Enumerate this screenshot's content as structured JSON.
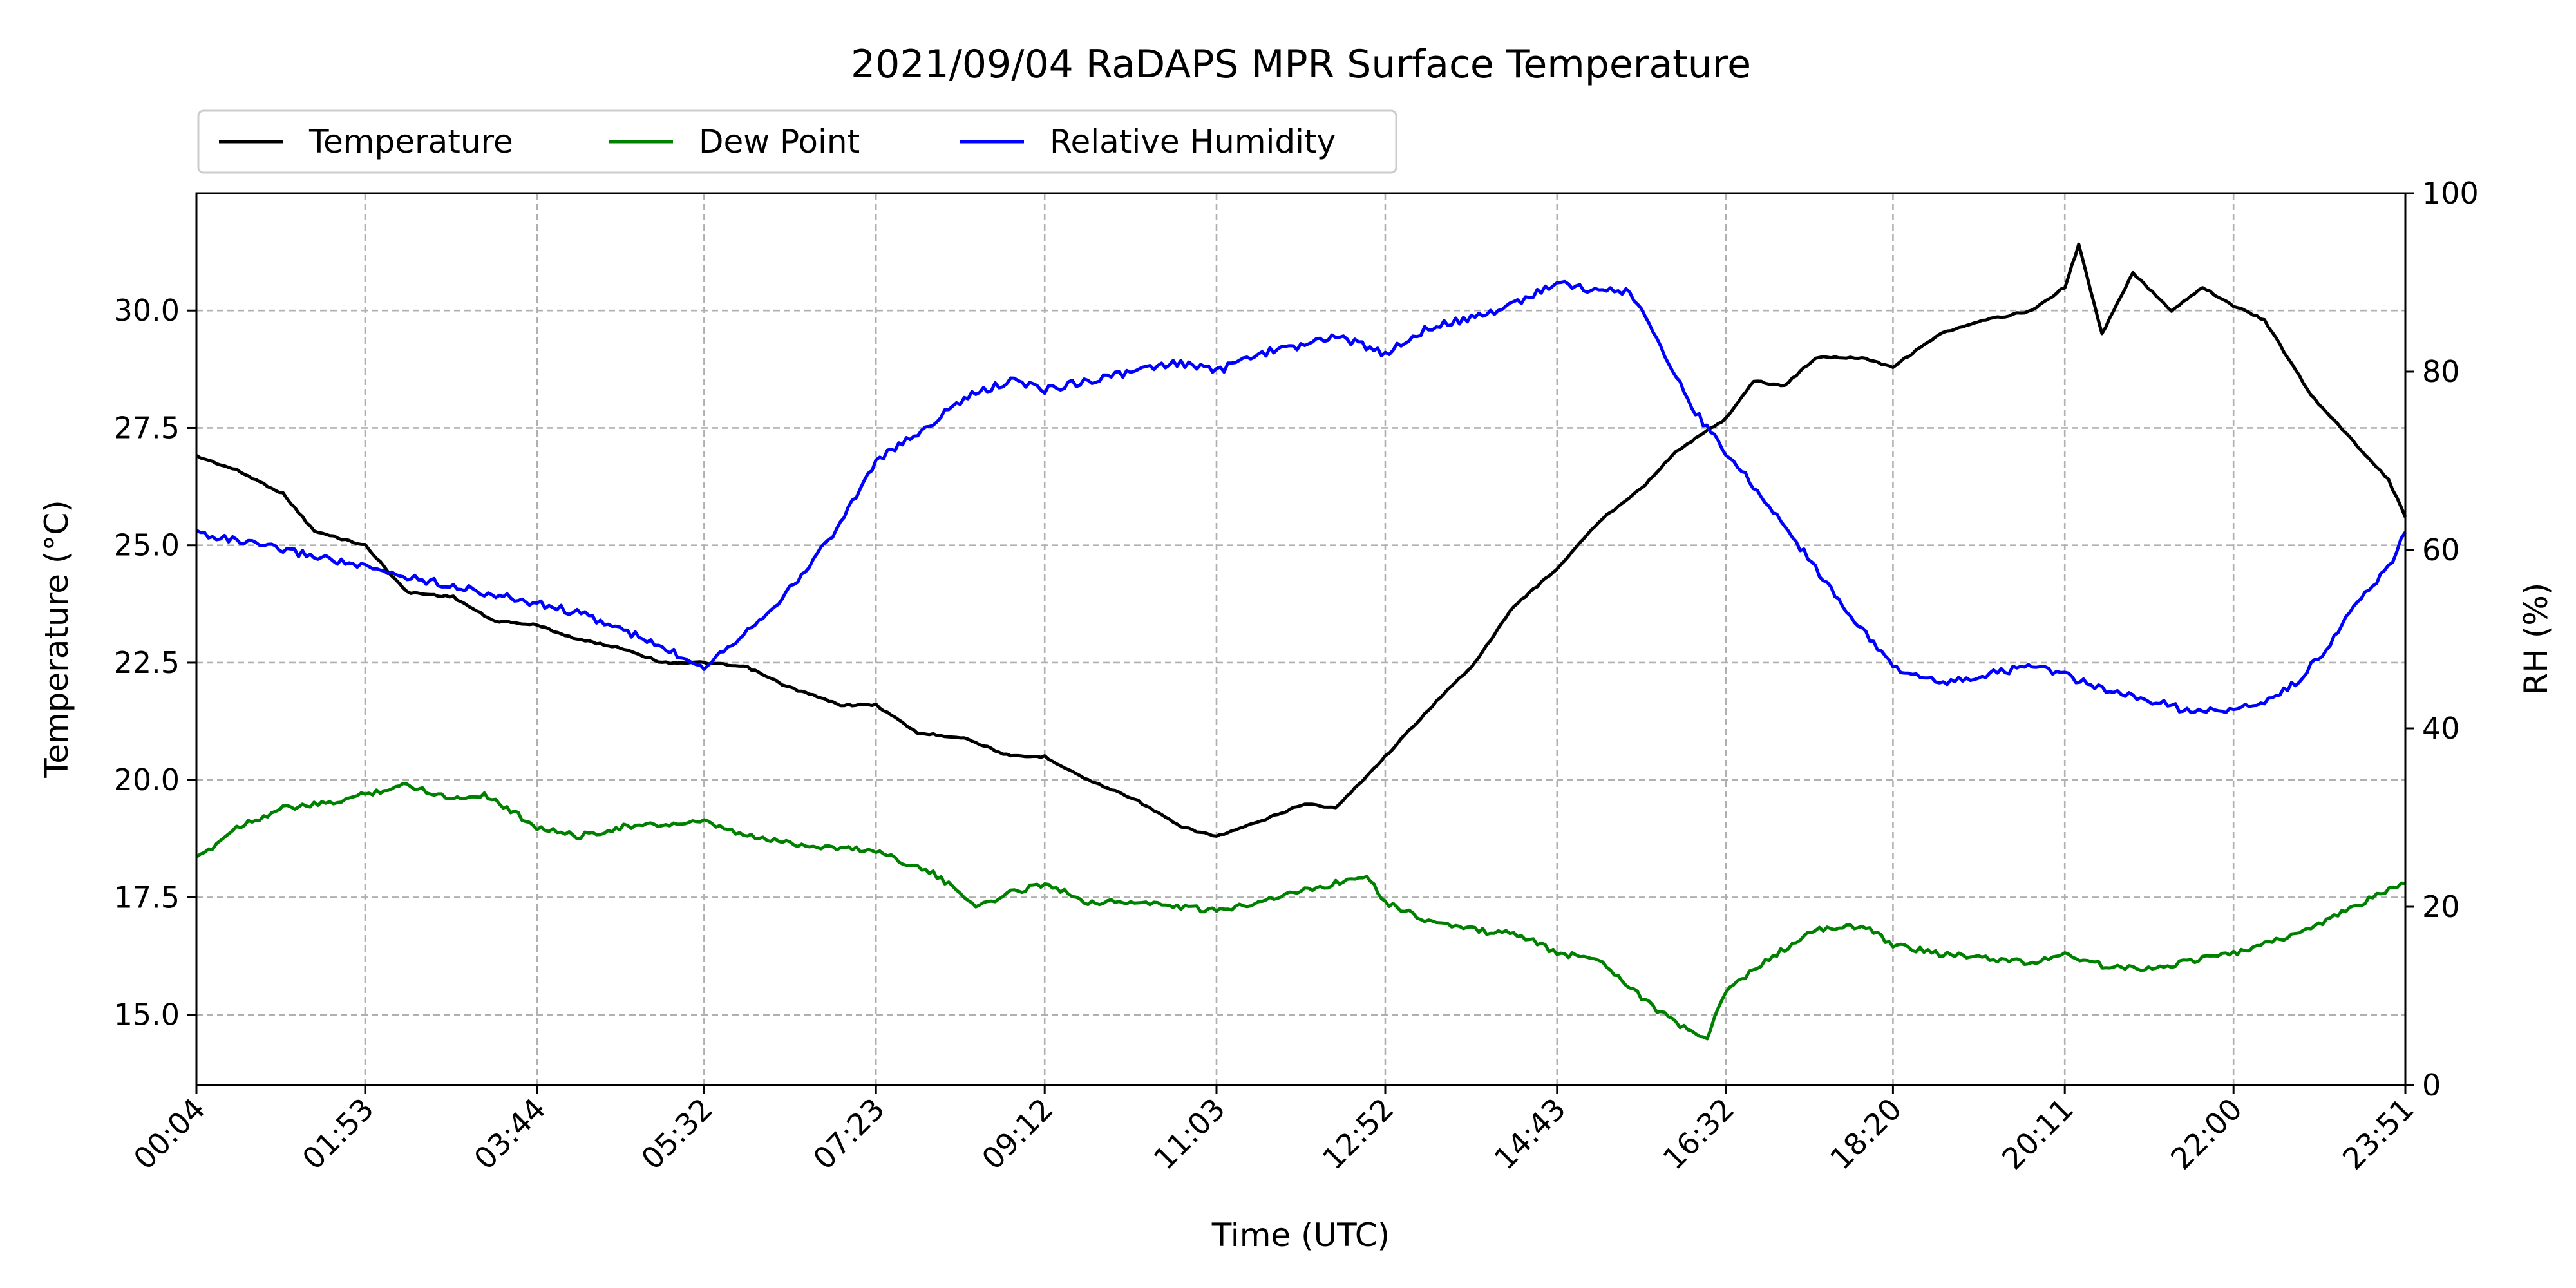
{
  "chart_data": {
    "type": "line",
    "title": "2021/09/04 RaDAPS MPR Surface Temperature",
    "xlabel": "Time (UTC)",
    "ylabel": "Temperature ($^\\circ$C)",
    "y2label": "RH (%)",
    "x_ticks": [
      "00:04",
      "01:53",
      "03:44",
      "05:32",
      "07:23",
      "09:12",
      "11:03",
      "12:52",
      "14:43",
      "16:32",
      "18:20",
      "20:11",
      "22:00",
      "23:51"
    ],
    "xlim": [
      "00:04",
      "23:51"
    ],
    "y_ticks": [
      "15.0",
      "17.5",
      "20.0",
      "22.5",
      "25.0",
      "27.5",
      "30.0"
    ],
    "ylim": [
      13.5,
      32.5
    ],
    "y2_ticks": [
      "0",
      "20",
      "40",
      "60",
      "80",
      "100"
    ],
    "y2lim": [
      0,
      100
    ],
    "grid": true,
    "legend_position": "above-left",
    "series": [
      {
        "name": "Temperature",
        "color": "#000000",
        "axis": "left",
        "points": [
          [
            "00:04",
            26.9
          ],
          [
            "00:30",
            26.6
          ],
          [
            "01:00",
            26.1
          ],
          [
            "01:20",
            25.3
          ],
          [
            "01:53",
            25.0
          ],
          [
            "02:20",
            24.0
          ],
          [
            "02:50",
            23.9
          ],
          [
            "03:15",
            23.4
          ],
          [
            "03:44",
            23.3
          ],
          [
            "04:10",
            23.0
          ],
          [
            "04:40",
            22.8
          ],
          [
            "05:05",
            22.5
          ],
          [
            "05:32",
            22.5
          ],
          [
            "06:00",
            22.4
          ],
          [
            "06:25",
            22.0
          ],
          [
            "07:00",
            21.6
          ],
          [
            "07:23",
            21.6
          ],
          [
            "07:50",
            21.0
          ],
          [
            "08:20",
            20.9
          ],
          [
            "08:50",
            20.5
          ],
          [
            "09:12",
            20.5
          ],
          [
            "09:40",
            20.0
          ],
          [
            "10:10",
            19.6
          ],
          [
            "10:40",
            19.0
          ],
          [
            "11:03",
            18.8
          ],
          [
            "11:30",
            19.1
          ],
          [
            "12:00",
            19.5
          ],
          [
            "12:20",
            19.4
          ],
          [
            "12:52",
            20.5
          ],
          [
            "13:20",
            21.5
          ],
          [
            "13:50",
            22.5
          ],
          [
            "14:15",
            23.7
          ],
          [
            "14:43",
            24.5
          ],
          [
            "15:10",
            25.5
          ],
          [
            "15:40",
            26.3
          ],
          [
            "16:00",
            27.0
          ],
          [
            "16:32",
            27.7
          ],
          [
            "16:50",
            28.5
          ],
          [
            "17:10",
            28.4
          ],
          [
            "17:30",
            29.0
          ],
          [
            "18:00",
            29.0
          ],
          [
            "18:20",
            28.8
          ],
          [
            "18:50",
            29.5
          ],
          [
            "19:20",
            29.8
          ],
          [
            "19:50",
            30.0
          ],
          [
            "20:11",
            30.5
          ],
          [
            "20:20",
            31.4
          ],
          [
            "20:35",
            29.5
          ],
          [
            "20:55",
            30.8
          ],
          [
            "21:20",
            30.0
          ],
          [
            "21:40",
            30.5
          ],
          [
            "22:00",
            30.1
          ],
          [
            "22:20",
            29.8
          ],
          [
            "22:50",
            28.2
          ],
          [
            "23:15",
            27.3
          ],
          [
            "23:40",
            26.4
          ],
          [
            "23:51",
            25.6
          ]
        ]
      },
      {
        "name": "Dew Point",
        "color": "#008000",
        "axis": "left",
        "points": [
          [
            "00:04",
            18.3
          ],
          [
            "00:30",
            19.0
          ],
          [
            "01:00",
            19.4
          ],
          [
            "01:30",
            19.5
          ],
          [
            "01:53",
            19.7
          ],
          [
            "02:20",
            19.9
          ],
          [
            "02:50",
            19.6
          ],
          [
            "03:10",
            19.7
          ],
          [
            "03:44",
            19.0
          ],
          [
            "04:10",
            18.8
          ],
          [
            "04:40",
            19.0
          ],
          [
            "05:32",
            19.1
          ],
          [
            "06:00",
            18.8
          ],
          [
            "06:40",
            18.6
          ],
          [
            "07:23",
            18.5
          ],
          [
            "08:00",
            18.0
          ],
          [
            "08:30",
            17.3
          ],
          [
            "08:50",
            17.6
          ],
          [
            "09:12",
            17.8
          ],
          [
            "09:40",
            17.4
          ],
          [
            "10:10",
            17.4
          ],
          [
            "10:40",
            17.3
          ],
          [
            "11:03",
            17.2
          ],
          [
            "11:40",
            17.5
          ],
          [
            "12:20",
            17.8
          ],
          [
            "12:40",
            18.0
          ],
          [
            "12:52",
            17.4
          ],
          [
            "13:20",
            17.0
          ],
          [
            "13:50",
            16.8
          ],
          [
            "14:20",
            16.7
          ],
          [
            "14:43",
            16.3
          ],
          [
            "15:10",
            16.2
          ],
          [
            "15:40",
            15.3
          ],
          [
            "16:00",
            14.8
          ],
          [
            "16:20",
            14.5
          ],
          [
            "16:32",
            15.5
          ],
          [
            "17:00",
            16.2
          ],
          [
            "17:30",
            16.8
          ],
          [
            "18:00",
            16.9
          ],
          [
            "18:20",
            16.5
          ],
          [
            "18:50",
            16.3
          ],
          [
            "19:20",
            16.2
          ],
          [
            "19:50",
            16.1
          ],
          [
            "20:11",
            16.3
          ],
          [
            "20:40",
            16.0
          ],
          [
            "21:10",
            16.0
          ],
          [
            "21:40",
            16.2
          ],
          [
            "22:00",
            16.3
          ],
          [
            "22:30",
            16.6
          ],
          [
            "23:00",
            17.0
          ],
          [
            "23:30",
            17.5
          ],
          [
            "23:51",
            17.8
          ]
        ]
      },
      {
        "name": "Relative Humidity",
        "color": "#0000ff",
        "axis": "right",
        "points": [
          [
            "00:04",
            62
          ],
          [
            "00:30",
            61
          ],
          [
            "01:00",
            60
          ],
          [
            "01:30",
            59
          ],
          [
            "01:53",
            58
          ],
          [
            "02:20",
            57
          ],
          [
            "02:50",
            56
          ],
          [
            "03:15",
            55
          ],
          [
            "03:44",
            54
          ],
          [
            "04:10",
            53
          ],
          [
            "04:40",
            51
          ],
          [
            "05:05",
            49
          ],
          [
            "05:32",
            47
          ],
          [
            "06:00",
            51
          ],
          [
            "06:30",
            56
          ],
          [
            "07:00",
            63
          ],
          [
            "07:23",
            70
          ],
          [
            "07:50",
            73
          ],
          [
            "08:20",
            77
          ],
          [
            "08:50",
            79
          ],
          [
            "09:12",
            78
          ],
          [
            "09:40",
            79
          ],
          [
            "10:10",
            80
          ],
          [
            "10:40",
            81
          ],
          [
            "11:03",
            80
          ],
          [
            "11:30",
            82
          ],
          [
            "12:00",
            83
          ],
          [
            "12:20",
            84
          ],
          [
            "12:52",
            82
          ],
          [
            "13:20",
            85
          ],
          [
            "13:50",
            86
          ],
          [
            "14:20",
            88
          ],
          [
            "14:43",
            90
          ],
          [
            "15:10",
            89
          ],
          [
            "15:30",
            89
          ],
          [
            "15:50",
            83
          ],
          [
            "16:10",
            76
          ],
          [
            "16:32",
            71
          ],
          [
            "17:00",
            65
          ],
          [
            "17:30",
            58
          ],
          [
            "18:00",
            51
          ],
          [
            "18:20",
            47
          ],
          [
            "18:50",
            45
          ],
          [
            "19:20",
            46
          ],
          [
            "19:50",
            47
          ],
          [
            "20:11",
            46
          ],
          [
            "20:40",
            44
          ],
          [
            "21:10",
            43
          ],
          [
            "21:30",
            42
          ],
          [
            "22:00",
            42
          ],
          [
            "22:20",
            43
          ],
          [
            "22:40",
            45
          ],
          [
            "23:00",
            49
          ],
          [
            "23:20",
            54
          ],
          [
            "23:40",
            58
          ],
          [
            "23:51",
            62
          ]
        ]
      }
    ]
  }
}
